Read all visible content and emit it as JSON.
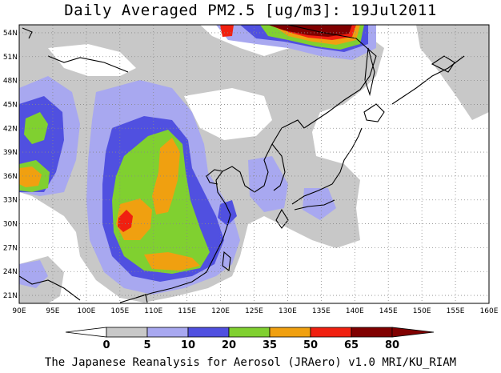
{
  "title": "Daily Averaged PM2.5 [ug/m3]: 19Jul2011",
  "footer": "The Japanese Reanalysis for Aerosol (JRAero) v1.0 MRI/KU_RIAM",
  "map": {
    "projection": "lat-lon",
    "lon_range": [
      90,
      160
    ],
    "lat_range": [
      20,
      55
    ],
    "grid": "dotted",
    "lon_ticks": [
      "90E",
      "95E",
      "100E",
      "105E",
      "110E",
      "115E",
      "120E",
      "125E",
      "130E",
      "135E",
      "140E",
      "145E",
      "150E",
      "155E",
      "160E"
    ],
    "lat_ticks": [
      "21N",
      "24N",
      "27N",
      "30N",
      "33N",
      "36N",
      "39N",
      "42N",
      "45N",
      "48N",
      "51N",
      "54N"
    ]
  },
  "colorbar": {
    "levels": [
      "0",
      "5",
      "10",
      "20",
      "35",
      "50",
      "65",
      "80"
    ],
    "colors": [
      "#ffffff",
      "#c8c8c8",
      "#a8a8f0",
      "#5050e0",
      "#80d030",
      "#f0a010",
      "#f02010",
      "#800000"
    ]
  }
}
